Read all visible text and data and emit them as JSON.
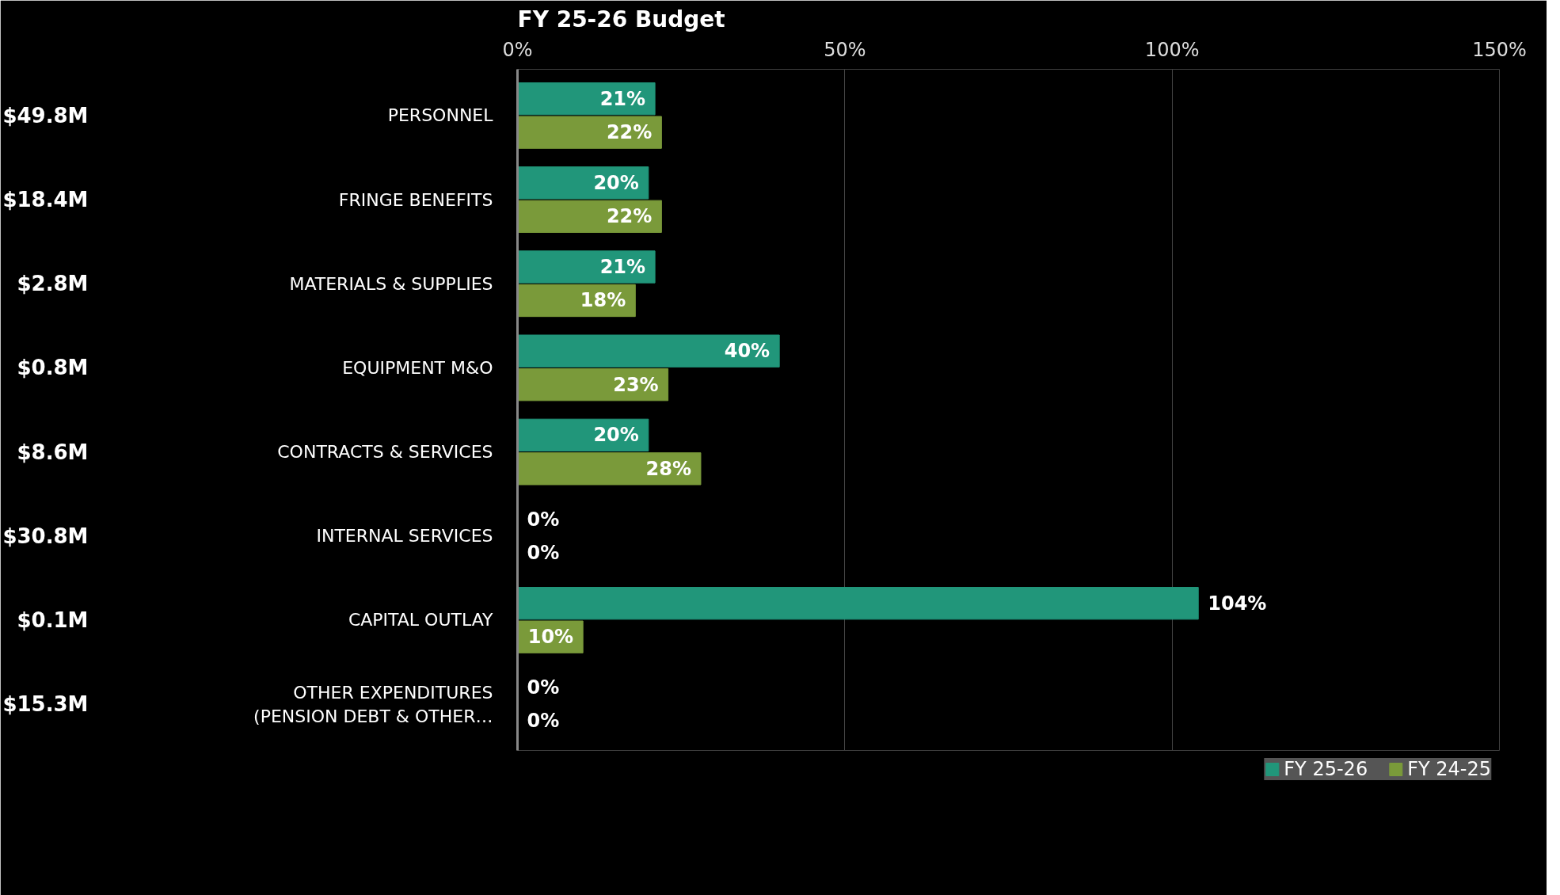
{
  "chart_data": {
    "type": "bar",
    "orientation": "horizontal",
    "title": "FY 25-26 Budget",
    "categories": [
      "PERSONNEL",
      "FRINGE BENEFITS",
      "MATERIALS & SUPPLIES",
      "EQUIPMENT M&O",
      "CONTRACTS & SERVICES",
      "INTERNAL SERVICES",
      "CAPITAL OUTLAY",
      "OTHER EXPENDITURES\n(PENSION DEBT & OTHER…"
    ],
    "series": [
      {
        "name": "FY 25-26",
        "color": "#21967a",
        "values": [
          21,
          20,
          21,
          40,
          20,
          0,
          104,
          0
        ],
        "value_labels": [
          "21%",
          "20%",
          "21%",
          "40%",
          "20%",
          "0%",
          "104%",
          "0%"
        ]
      },
      {
        "name": "FY 24-25",
        "color": "#7a9a3a",
        "values": [
          22,
          22,
          18,
          23,
          28,
          0,
          10,
          0
        ],
        "value_labels": [
          "22%",
          "22%",
          "18%",
          "23%",
          "28%",
          "0%",
          "10%",
          "0%"
        ]
      }
    ],
    "xlim": [
      0,
      150
    ],
    "xticks": [
      {
        "value": 0,
        "label": "0%"
      },
      {
        "value": 50,
        "label": "50%"
      },
      {
        "value": 100,
        "label": "100%"
      },
      {
        "value": 150,
        "label": "150%"
      }
    ],
    "annotations": [
      "$49.8M",
      "$18.4M",
      "$2.8M",
      "$0.8M",
      "$8.6M",
      "$30.8M",
      "$0.1M",
      "$15.3M"
    ],
    "grid": "x",
    "legend": "bottom"
  }
}
